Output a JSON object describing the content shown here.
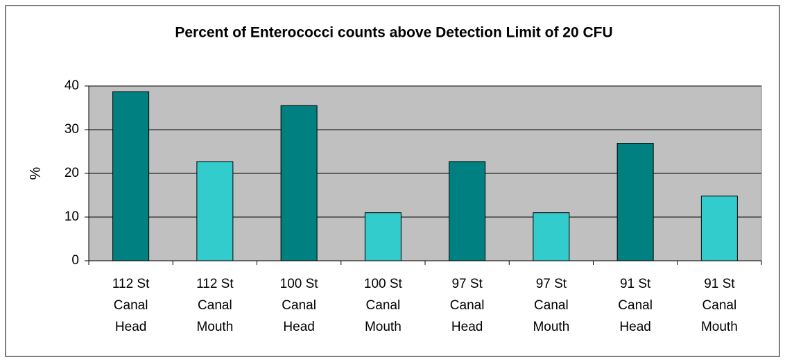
{
  "chart_data": {
    "type": "bar",
    "title": "Percent of Enterococci counts above Detection Limit of 20 CFU",
    "y_label": "%",
    "categories": [
      "112 St Canal Head",
      "112 St Canal Mouth",
      "100 St Canal Head",
      "100 St Canal Mouth",
      "97 St Canal Head",
      "97 St Canal Mouth",
      "91 St Canal Head",
      "91 St Canal Mouth"
    ],
    "values": [
      38.7,
      22.7,
      35.5,
      11,
      22.7,
      11,
      26.9,
      14.8
    ],
    "colors": [
      "#008080",
      "#33cccc",
      "#008080",
      "#33cccc",
      "#008080",
      "#33cccc",
      "#008080",
      "#33cccc"
    ],
    "ylim": [
      0,
      40
    ],
    "yticks": [
      0,
      10,
      20,
      30,
      40
    ],
    "grid": true
  }
}
